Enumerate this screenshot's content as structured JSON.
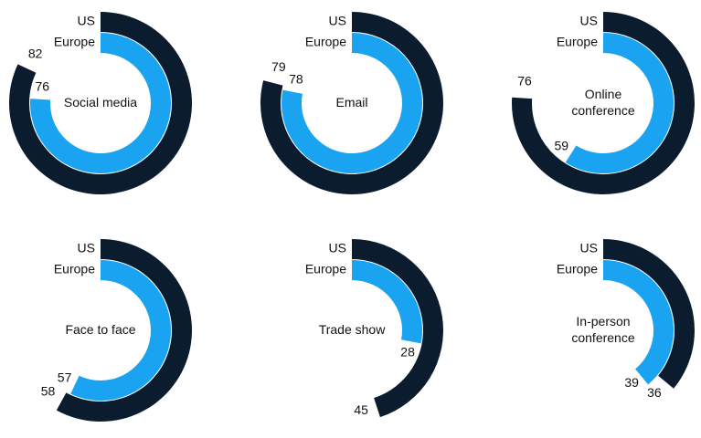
{
  "chart_data": [
    {
      "type": "radial-bar",
      "title": "Social media",
      "ylim": [
        0,
        100
      ],
      "series": [
        {
          "name": "US",
          "color": "#0b1c2e",
          "values": [
            82
          ]
        },
        {
          "name": "Europe",
          "color": "#1aa3f0",
          "values": [
            76
          ]
        }
      ]
    },
    {
      "type": "radial-bar",
      "title": "Email",
      "ylim": [
        0,
        100
      ],
      "series": [
        {
          "name": "US",
          "color": "#0b1c2e",
          "values": [
            79
          ]
        },
        {
          "name": "Europe",
          "color": "#1aa3f0",
          "values": [
            78
          ]
        }
      ]
    },
    {
      "type": "radial-bar",
      "title": "Online\nconference",
      "ylim": [
        0,
        100
      ],
      "series": [
        {
          "name": "US",
          "color": "#0b1c2e",
          "values": [
            76
          ]
        },
        {
          "name": "Europe",
          "color": "#1aa3f0",
          "values": [
            59
          ]
        }
      ]
    },
    {
      "type": "radial-bar",
      "title": "Face to face",
      "ylim": [
        0,
        100
      ],
      "series": [
        {
          "name": "US",
          "color": "#0b1c2e",
          "values": [
            58
          ]
        },
        {
          "name": "Europe",
          "color": "#1aa3f0",
          "values": [
            57
          ]
        }
      ]
    },
    {
      "type": "radial-bar",
      "title": "Trade show",
      "ylim": [
        0,
        100
      ],
      "series": [
        {
          "name": "US",
          "color": "#0b1c2e",
          "values": [
            45
          ]
        },
        {
          "name": "Europe",
          "color": "#1aa3f0",
          "values": [
            28
          ]
        }
      ]
    },
    {
      "type": "radial-bar",
      "title": "In-person\nconference",
      "ylim": [
        0,
        100
      ],
      "series": [
        {
          "name": "US",
          "color": "#0b1c2e",
          "values": [
            36
          ]
        },
        {
          "name": "Europe",
          "color": "#1aa3f0",
          "values": [
            39
          ]
        }
      ]
    }
  ]
}
